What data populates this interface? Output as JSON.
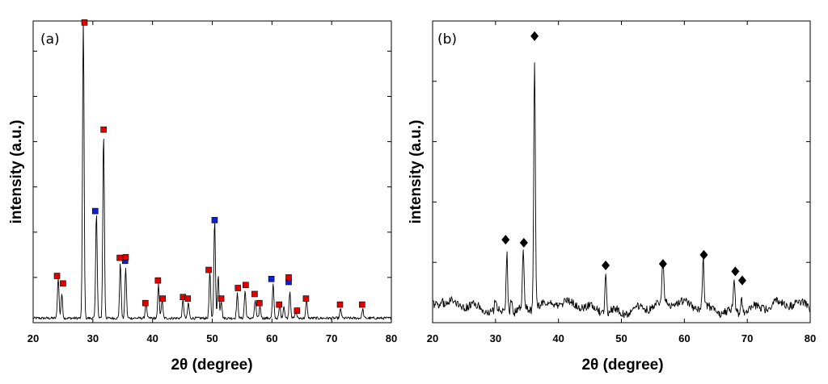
{
  "chart_data": [
    {
      "type": "line",
      "panel_label": "(a)",
      "xlabel": "2θ (degree)",
      "ylabel": "intensity (a.u.)",
      "xlim": [
        20,
        80
      ],
      "ylim": [
        0,
        100
      ],
      "xticks": [
        20,
        30,
        40,
        50,
        60,
        70,
        80
      ],
      "xtick_labels": [
        "20",
        "30",
        "40",
        "50",
        "60",
        "70",
        "80"
      ],
      "yticks": [
        15,
        30,
        45,
        60,
        75,
        90
      ],
      "baseline": 1.5,
      "noise": 0.45,
      "peaks": [
        {
          "x": 24.2,
          "y": 13.5
        },
        {
          "x": 24.8,
          "y": 8
        },
        {
          "x": 28.4,
          "y": 99
        },
        {
          "x": 30.6,
          "y": 35
        },
        {
          "x": 31.8,
          "y": 61
        },
        {
          "x": 34.6,
          "y": 18
        },
        {
          "x": 35.5,
          "y": 16.5
        },
        {
          "x": 38.9,
          "y": 5
        },
        {
          "x": 41.0,
          "y": 11
        },
        {
          "x": 41.6,
          "y": 6
        },
        {
          "x": 45.1,
          "y": 6
        },
        {
          "x": 46.0,
          "y": 5
        },
        {
          "x": 49.6,
          "y": 15
        },
        {
          "x": 50.4,
          "y": 32
        },
        {
          "x": 51.0,
          "y": 14
        },
        {
          "x": 51.5,
          "y": 6
        },
        {
          "x": 54.2,
          "y": 8
        },
        {
          "x": 55.5,
          "y": 9
        },
        {
          "x": 57.2,
          "y": 6
        },
        {
          "x": 58.0,
          "y": 4
        },
        {
          "x": 60.2,
          "y": 11
        },
        {
          "x": 61.3,
          "y": 4
        },
        {
          "x": 62.0,
          "y": 4
        },
        {
          "x": 63.0,
          "y": 9
        },
        {
          "x": 64.0,
          "y": 2.5
        },
        {
          "x": 65.8,
          "y": 6
        },
        {
          "x": 71.5,
          "y": 3
        },
        {
          "x": 75.2,
          "y": 3
        }
      ],
      "markers": [
        {
          "x": 24.0,
          "y": 15.5,
          "series": "red"
        },
        {
          "x": 25.0,
          "y": 13.0,
          "series": "red"
        },
        {
          "x": 28.6,
          "y": 99.5,
          "series": "red"
        },
        {
          "x": 30.4,
          "y": 37.0,
          "series": "blue"
        },
        {
          "x": 31.8,
          "y": 64.0,
          "series": "red"
        },
        {
          "x": 34.5,
          "y": 21.5,
          "series": "red"
        },
        {
          "x": 35.4,
          "y": 20.5,
          "series": "blue"
        },
        {
          "x": 35.5,
          "y": 21.7,
          "series": "red"
        },
        {
          "x": 38.8,
          "y": 6.5,
          "series": "red"
        },
        {
          "x": 40.9,
          "y": 14.0,
          "series": "red"
        },
        {
          "x": 41.7,
          "y": 8.0,
          "series": "red"
        },
        {
          "x": 45.1,
          "y": 8.5,
          "series": "red"
        },
        {
          "x": 45.9,
          "y": 8.0,
          "series": "red"
        },
        {
          "x": 49.4,
          "y": 17.5,
          "series": "red"
        },
        {
          "x": 50.4,
          "y": 34.0,
          "series": "blue"
        },
        {
          "x": 51.5,
          "y": 8.0,
          "series": "red"
        },
        {
          "x": 54.3,
          "y": 11.5,
          "series": "red"
        },
        {
          "x": 55.6,
          "y": 12.5,
          "series": "red"
        },
        {
          "x": 57.1,
          "y": 9.5,
          "series": "red"
        },
        {
          "x": 57.9,
          "y": 6.5,
          "series": "red"
        },
        {
          "x": 59.9,
          "y": 14.5,
          "series": "blue"
        },
        {
          "x": 61.2,
          "y": 6.0,
          "series": "red"
        },
        {
          "x": 62.8,
          "y": 13.5,
          "series": "blue"
        },
        {
          "x": 62.8,
          "y": 15.0,
          "series": "red"
        },
        {
          "x": 64.2,
          "y": 4.0,
          "series": "red"
        },
        {
          "x": 65.7,
          "y": 8.0,
          "series": "red"
        },
        {
          "x": 71.4,
          "y": 6.0,
          "series": "red"
        },
        {
          "x": 75.1,
          "y": 6.0,
          "series": "red"
        }
      ]
    },
    {
      "type": "line",
      "panel_label": "(b)",
      "xlabel": "2θ (degree)",
      "ylabel": "intensity (a.u.)",
      "xlim": [
        20,
        80
      ],
      "ylim": [
        0,
        100
      ],
      "xticks": [
        20,
        30,
        40,
        50,
        60,
        70,
        80
      ],
      "xtick_labels": [
        "20",
        "30",
        "40",
        "50",
        "60",
        "70",
        "80"
      ],
      "yticks": [
        20,
        40,
        60,
        80
      ],
      "baseline": 5,
      "noise": 1.3,
      "peaks": [
        {
          "x": 21.5,
          "y": 2
        },
        {
          "x": 30.0,
          "y": 4
        },
        {
          "x": 31.8,
          "y": 20
        },
        {
          "x": 32.5,
          "y": 5
        },
        {
          "x": 34.4,
          "y": 18
        },
        {
          "x": 36.2,
          "y": 82
        },
        {
          "x": 47.5,
          "y": 13
        },
        {
          "x": 56.6,
          "y": 14
        },
        {
          "x": 63.0,
          "y": 16
        },
        {
          "x": 67.9,
          "y": 10
        },
        {
          "x": 69.1,
          "y": 5
        }
      ],
      "markers": [
        {
          "x": 31.6,
          "y": 27.5,
          "series": "black"
        },
        {
          "x": 34.5,
          "y": 26.5,
          "series": "black"
        },
        {
          "x": 36.2,
          "y": 95.0,
          "series": "black"
        },
        {
          "x": 47.5,
          "y": 19.0,
          "series": "black"
        },
        {
          "x": 56.6,
          "y": 19.5,
          "series": "black"
        },
        {
          "x": 63.1,
          "y": 22.5,
          "series": "black"
        },
        {
          "x": 68.1,
          "y": 17.0,
          "series": "black"
        },
        {
          "x": 69.2,
          "y": 14.0,
          "series": "black"
        }
      ]
    }
  ],
  "colors": {
    "red": "#e00000",
    "blue": "#1020d0",
    "black": "#000000"
  }
}
